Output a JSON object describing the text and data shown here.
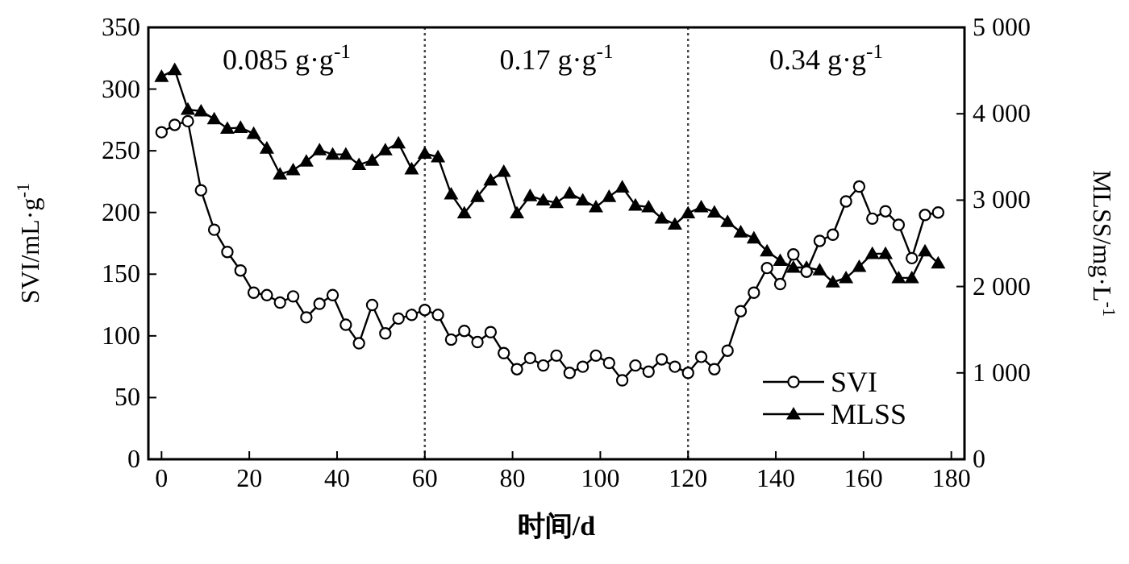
{
  "chart_data": {
    "type": "line",
    "xlabel": "时间/d",
    "ylabel": "SVI/mL·g$^{-1}$",
    "y2label": "MLSS/mg·L$^{-1}$",
    "x": [
      0,
      3,
      6,
      9,
      12,
      15,
      18,
      21,
      24,
      27,
      30,
      33,
      36,
      39,
      42,
      45,
      48,
      51,
      54,
      57,
      60,
      63,
      66,
      69,
      72,
      75,
      78,
      81,
      84,
      87,
      90,
      93,
      96,
      99,
      102,
      105,
      108,
      111,
      114,
      117,
      120,
      123,
      126,
      129,
      132,
      135,
      138,
      141,
      144,
      147,
      150,
      153,
      156,
      159,
      162,
      165,
      168,
      171,
      174,
      177
    ],
    "series": [
      {
        "name": "SVI",
        "color": "#000000",
        "marker": "circle",
        "values": [
          265,
          271,
          274,
          218,
          186,
          168,
          153,
          135,
          133,
          127,
          132,
          115,
          126,
          133,
          109,
          94,
          125,
          102,
          114,
          117,
          121,
          117,
          97,
          104,
          95,
          103,
          86,
          73,
          82,
          76,
          84,
          70,
          75,
          84,
          78,
          64,
          76,
          71,
          81,
          75,
          70,
          83,
          73,
          88,
          120,
          135,
          155,
          142,
          166,
          152,
          177,
          182,
          209,
          221,
          195,
          201,
          190,
          163,
          198,
          200
        ]
      },
      {
        "name": "MLSS",
        "color": "#000000",
        "marker": "triangle",
        "axis": "y2",
        "values": [
          4430,
          4510,
          4050,
          4030,
          3940,
          3830,
          3840,
          3770,
          3600,
          3300,
          3350,
          3450,
          3580,
          3530,
          3530,
          3410,
          3460,
          3580,
          3660,
          3360,
          3540,
          3500,
          3070,
          2850,
          3040,
          3230,
          3330,
          2850,
          3050,
          3000,
          2970,
          3080,
          3000,
          2920,
          3040,
          3150,
          2940,
          2920,
          2790,
          2720,
          2850,
          2920,
          2860,
          2750,
          2630,
          2560,
          2410,
          2300,
          2220,
          2220,
          2190,
          2050,
          2100,
          2230,
          2380,
          2380,
          2100,
          2100,
          2410,
          2270
        ]
      }
    ],
    "xlim": [
      -3,
      183
    ],
    "xticks": [
      0,
      20,
      40,
      60,
      80,
      100,
      120,
      140,
      160,
      180
    ],
    "ylim": [
      0,
      350
    ],
    "yticks": [
      0,
      50,
      100,
      150,
      200,
      250,
      300,
      350
    ],
    "y2lim": [
      0,
      5000
    ],
    "y2ticks": [
      0,
      {
        "value": 1000,
        "label": "1 000"
      },
      {
        "value": 2000,
        "label": "2 000"
      },
      {
        "value": 3000,
        "label": "3 000"
      },
      {
        "value": 4000,
        "label": "4 000"
      },
      {
        "value": 5000,
        "label": "5 000"
      }
    ],
    "ref_lines": [
      {
        "axis": "x",
        "value": 60,
        "line_style": "dotted"
      },
      {
        "axis": "x",
        "value": 120,
        "line_style": "dotted"
      }
    ],
    "annotations": [
      "0.085 g·g$^{-1}$",
      "0.17 g·g$^{-1}$",
      "0.34 g·g$^{-1}$"
    ],
    "grid": false,
    "legend": "bottom right",
    "line_style": "solid"
  }
}
